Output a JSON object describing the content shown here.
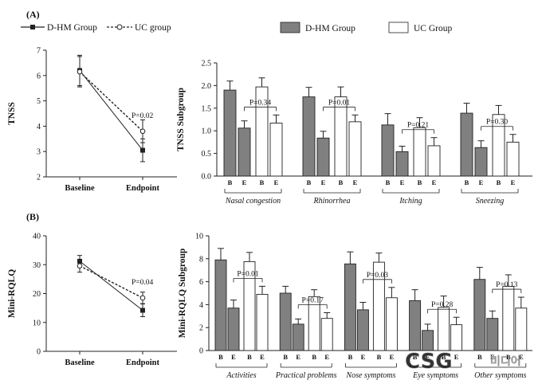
{
  "panels": {
    "a_label": "(A)",
    "b_label": "(B)"
  },
  "legend_line": {
    "s1": "D-HM Group",
    "s2": "UC group"
  },
  "legend_bar": {
    "s1": "D-HM Group",
    "s2": "UC Group"
  },
  "watermark": {
    "text": "CSG",
    "sub": "미디어"
  },
  "colors": {
    "dhm": "#808080",
    "uc": "#ffffff",
    "edge": "#222222"
  },
  "chart_data": [
    {
      "type": "line",
      "panel": "A-left",
      "ylabel": "TNSS",
      "categories": [
        "Baseline",
        "Endpoint"
      ],
      "ylim": [
        2,
        7
      ],
      "yticks": [
        2,
        3,
        4,
        5,
        6,
        7
      ],
      "series": [
        {
          "name": "D-HM Group",
          "values": [
            6.2,
            3.05
          ],
          "errors": [
            0.6,
            0.45
          ],
          "marker": "square",
          "style": "solid"
        },
        {
          "name": "UC group",
          "values": [
            6.15,
            3.8
          ],
          "errors": [
            0.6,
            0.45
          ],
          "marker": "circle",
          "style": "dashed"
        }
      ],
      "annotation": "P=0.02"
    },
    {
      "type": "bar",
      "panel": "A-right",
      "ylabel": "TNSS Subgroup",
      "ylim": [
        0,
        2.5
      ],
      "yticks": [
        "0.0",
        "0.5",
        "1.0",
        "1.5",
        "2.0",
        "2.5"
      ],
      "groups": [
        {
          "name": "Nasal congestion",
          "dhm": [
            1.9,
            1.06
          ],
          "dhm_err": [
            0.2,
            0.16
          ],
          "uc": [
            1.97,
            1.17
          ],
          "uc_err": [
            0.2,
            0.18
          ],
          "p": "P=0.34"
        },
        {
          "name": "Rhinorrhea",
          "dhm": [
            1.75,
            0.84
          ],
          "dhm_err": [
            0.21,
            0.15
          ],
          "uc": [
            1.75,
            1.2
          ],
          "uc_err": [
            0.22,
            0.15
          ],
          "p": "P=0.01"
        },
        {
          "name": "Itching",
          "dhm": [
            1.13,
            0.54
          ],
          "dhm_err": [
            0.25,
            0.12
          ],
          "uc": [
            1.07,
            0.67
          ],
          "uc_err": [
            0.22,
            0.18
          ],
          "p": "P=0.21"
        },
        {
          "name": "Sneezing",
          "dhm": [
            1.39,
            0.63
          ],
          "dhm_err": [
            0.22,
            0.15
          ],
          "uc": [
            1.36,
            0.75
          ],
          "uc_err": [
            0.2,
            0.17
          ],
          "p": "P=0.30"
        }
      ],
      "sublabels": [
        "B",
        "E",
        "B",
        "E"
      ]
    },
    {
      "type": "line",
      "panel": "B-left",
      "ylabel": "Mini-RQLQ",
      "categories": [
        "Baseline",
        "Endpoint"
      ],
      "ylim": [
        0,
        40
      ],
      "yticks": [
        0,
        10,
        20,
        30,
        40
      ],
      "series": [
        {
          "name": "D-HM Group",
          "values": [
            31.2,
            14.2
          ],
          "errors": [
            2.0,
            2.2
          ],
          "marker": "square",
          "style": "solid"
        },
        {
          "name": "UC group",
          "values": [
            29.6,
            18.5
          ],
          "errors": [
            2.2,
            2.0
          ],
          "marker": "circle",
          "style": "dashed"
        }
      ],
      "annotation": "P=0.04"
    },
    {
      "type": "bar",
      "panel": "B-right",
      "ylabel": "Mini-RQLQ Subgroup",
      "ylim": [
        0,
        10
      ],
      "yticks": [
        0,
        2,
        4,
        6,
        8,
        10
      ],
      "groups": [
        {
          "name": "Activities",
          "dhm": [
            7.9,
            3.7
          ],
          "dhm_err": [
            1.0,
            0.7
          ],
          "uc": [
            7.75,
            4.9
          ],
          "uc_err": [
            0.8,
            0.7
          ],
          "p": "P=0.01"
        },
        {
          "name": "Practical problems",
          "dhm": [
            5.0,
            2.3
          ],
          "dhm_err": [
            0.6,
            0.45
          ],
          "uc": [
            4.7,
            2.8
          ],
          "uc_err": [
            0.6,
            0.5
          ],
          "p": "P=0.17"
        },
        {
          "name": "Nose symptoms",
          "dhm": [
            7.55,
            3.55
          ],
          "dhm_err": [
            1.05,
            0.65
          ],
          "uc": [
            7.7,
            4.6
          ],
          "uc_err": [
            0.8,
            0.9
          ],
          "p": "P=0.03"
        },
        {
          "name": "Eye symptoms",
          "dhm": [
            4.35,
            1.75
          ],
          "dhm_err": [
            0.95,
            0.55
          ],
          "uc": [
            3.75,
            2.25
          ],
          "uc_err": [
            1.0,
            0.65
          ],
          "p": "P=0.28"
        },
        {
          "name": "Other symptoms",
          "dhm": [
            6.2,
            2.8
          ],
          "dhm_err": [
            1.05,
            0.65
          ],
          "uc": [
            5.6,
            3.7
          ],
          "uc_err": [
            1.0,
            0.95
          ],
          "p": "P=0.13"
        }
      ],
      "sublabels": [
        "B",
        "E",
        "B",
        "E"
      ]
    }
  ]
}
